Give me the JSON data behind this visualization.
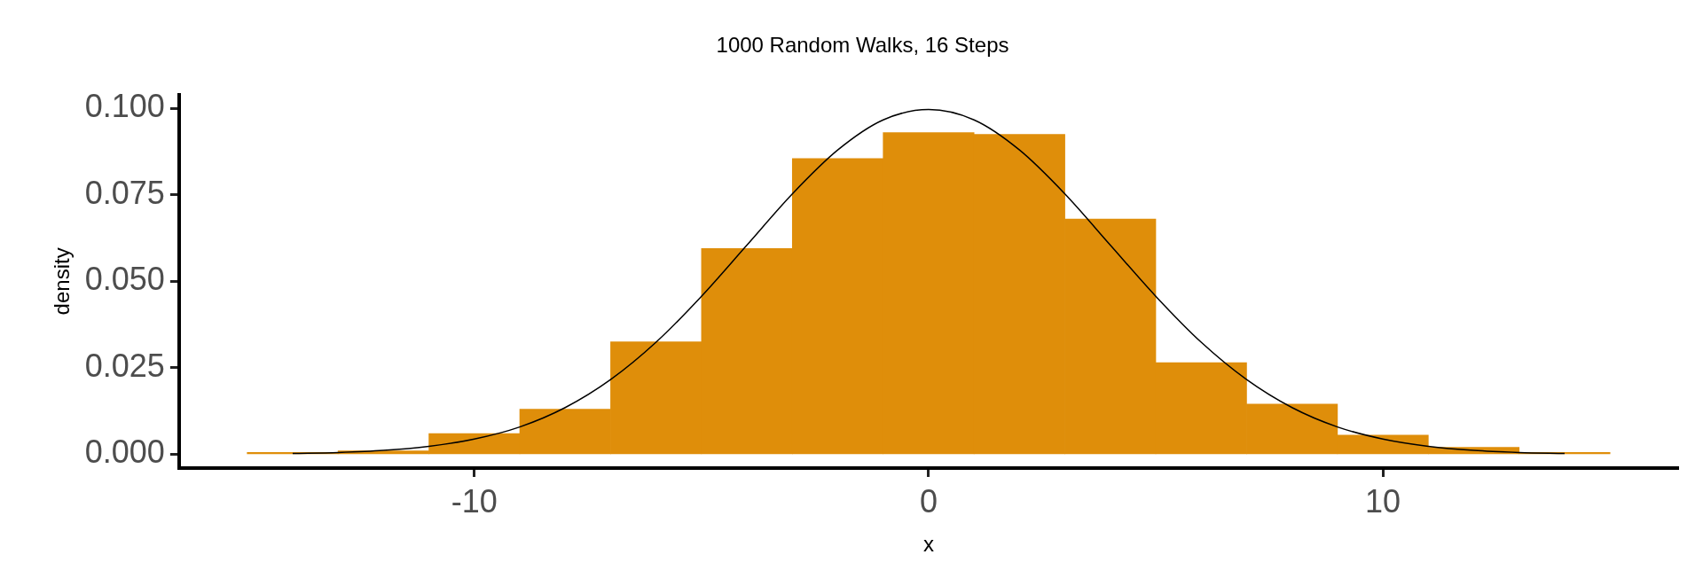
{
  "chart_data": {
    "type": "histogram",
    "title": "1000 Random Walks, 16 Steps",
    "xlabel": "x",
    "ylabel": "density",
    "bins": [
      -15,
      -13,
      -11,
      -9,
      -7,
      -5,
      -3,
      -1,
      1,
      3,
      5,
      7,
      9,
      11,
      13,
      15
    ],
    "values": [
      0.0005,
      0.001,
      0.006,
      0.013,
      0.0325,
      0.0595,
      0.0855,
      0.093,
      0.0925,
      0.068,
      0.0265,
      0.0145,
      0.0055,
      0.002,
      0.0005
    ],
    "color": "#df8e0a",
    "series": [
      {
        "type": "line",
        "color": "#000000",
        "x": [
          -14,
          -13,
          -12,
          -11,
          -10,
          -9,
          -8,
          -7,
          -6,
          -5,
          -4,
          -3,
          -2,
          -1,
          0,
          1,
          2,
          3,
          4,
          5,
          6,
          7,
          8,
          9,
          10,
          11,
          12,
          13,
          14
        ],
        "values": [
          0.0002,
          0.0005,
          0.0011,
          0.0023,
          0.0044,
          0.0079,
          0.0135,
          0.0216,
          0.0324,
          0.0457,
          0.0605,
          0.0753,
          0.088,
          0.0967,
          0.0997,
          0.0967,
          0.088,
          0.0753,
          0.0605,
          0.0457,
          0.0324,
          0.0216,
          0.0135,
          0.0079,
          0.0044,
          0.0023,
          0.0011,
          0.0005,
          0.0002
        ]
      }
    ],
    "xlim": [
      -16.5,
      16.5
    ],
    "xticks": [
      {
        "value": -10,
        "label": "-10"
      },
      {
        "value": 0,
        "label": "0"
      },
      {
        "value": 10,
        "label": "10"
      }
    ],
    "ylim": [
      -0.004,
      0.104
    ],
    "yticks": [
      {
        "value": 0,
        "label": "0.000"
      },
      {
        "value": 0.025,
        "label": "0.025"
      },
      {
        "value": 0.05,
        "label": "0.050"
      },
      {
        "value": 0.075,
        "label": "0.075"
      },
      {
        "value": 0.1,
        "label": "0.100"
      }
    ],
    "grid": false,
    "legend": false
  }
}
